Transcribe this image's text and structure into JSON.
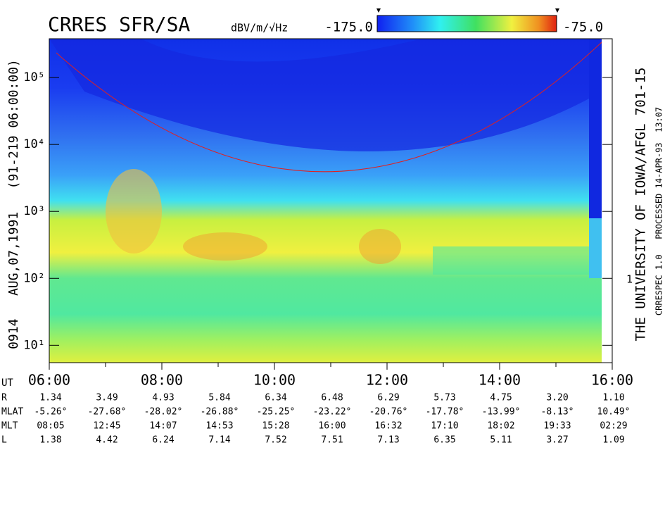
{
  "chart_data": {
    "type": "spectrogram",
    "title": "CRRES SFR/SA",
    "units": "dBV/m/√Hz",
    "colorbar": {
      "range": [
        -175,
        -75
      ],
      "labels": [
        "-175.0",
        "-75.0"
      ]
    },
    "ylog": true,
    "ylim": [
      5.5,
      380000
    ],
    "yticks": [
      {
        "value": 10,
        "label": "10¹"
      },
      {
        "value": 100,
        "label": "10²"
      },
      {
        "value": 1000,
        "label": "10³"
      },
      {
        "value": 10000,
        "label": "10⁴"
      },
      {
        "value": 100000,
        "label": "10⁵"
      }
    ],
    "right_axis_label": "1",
    "xlim": [
      6,
      16
    ],
    "xticks": [
      {
        "value": 6,
        "label": "06:00"
      },
      {
        "value": 8,
        "label": "08:00"
      },
      {
        "value": 10,
        "label": "10:00"
      },
      {
        "value": 12,
        "label": "12:00"
      },
      {
        "value": 14,
        "label": "14:00"
      },
      {
        "value": 16,
        "label": "16:00"
      }
    ],
    "left_caption": "0914   AUG,07,1991   (91-219 06:00:00)",
    "right_caption": "THE UNIVERSITY OF IOWA/AFGL 701-15",
    "right_subcaption": "CRRESPEC 1.0   PROCESSED 14-APR-93  13:07",
    "ephemeris": {
      "x_label": "UT",
      "labels": [
        "R",
        "MLAT",
        "MLT",
        "L"
      ],
      "rows": [
        [
          "1.34",
          "3.49",
          "4.93",
          "5.84",
          "6.34",
          "6.48",
          "6.29",
          "5.73",
          "4.75",
          "3.20",
          "1.10"
        ],
        [
          "-5.26°",
          "-27.68°",
          "-28.02°",
          "-26.88°",
          "-25.25°",
          "-23.22°",
          "-20.76°",
          "-17.78°",
          "-13.99°",
          "-8.13°",
          "10.49°"
        ],
        [
          "08:05",
          "12:45",
          "14:07",
          "14:53",
          "15:28",
          "16:00",
          "16:32",
          "17:10",
          "18:02",
          "19:33",
          "02:29"
        ],
        [
          "1.38",
          "4.42",
          "6.24",
          "7.14",
          "7.52",
          "7.51",
          "7.13",
          "6.35",
          "5.11",
          "3.27",
          "1.09"
        ]
      ]
    }
  }
}
